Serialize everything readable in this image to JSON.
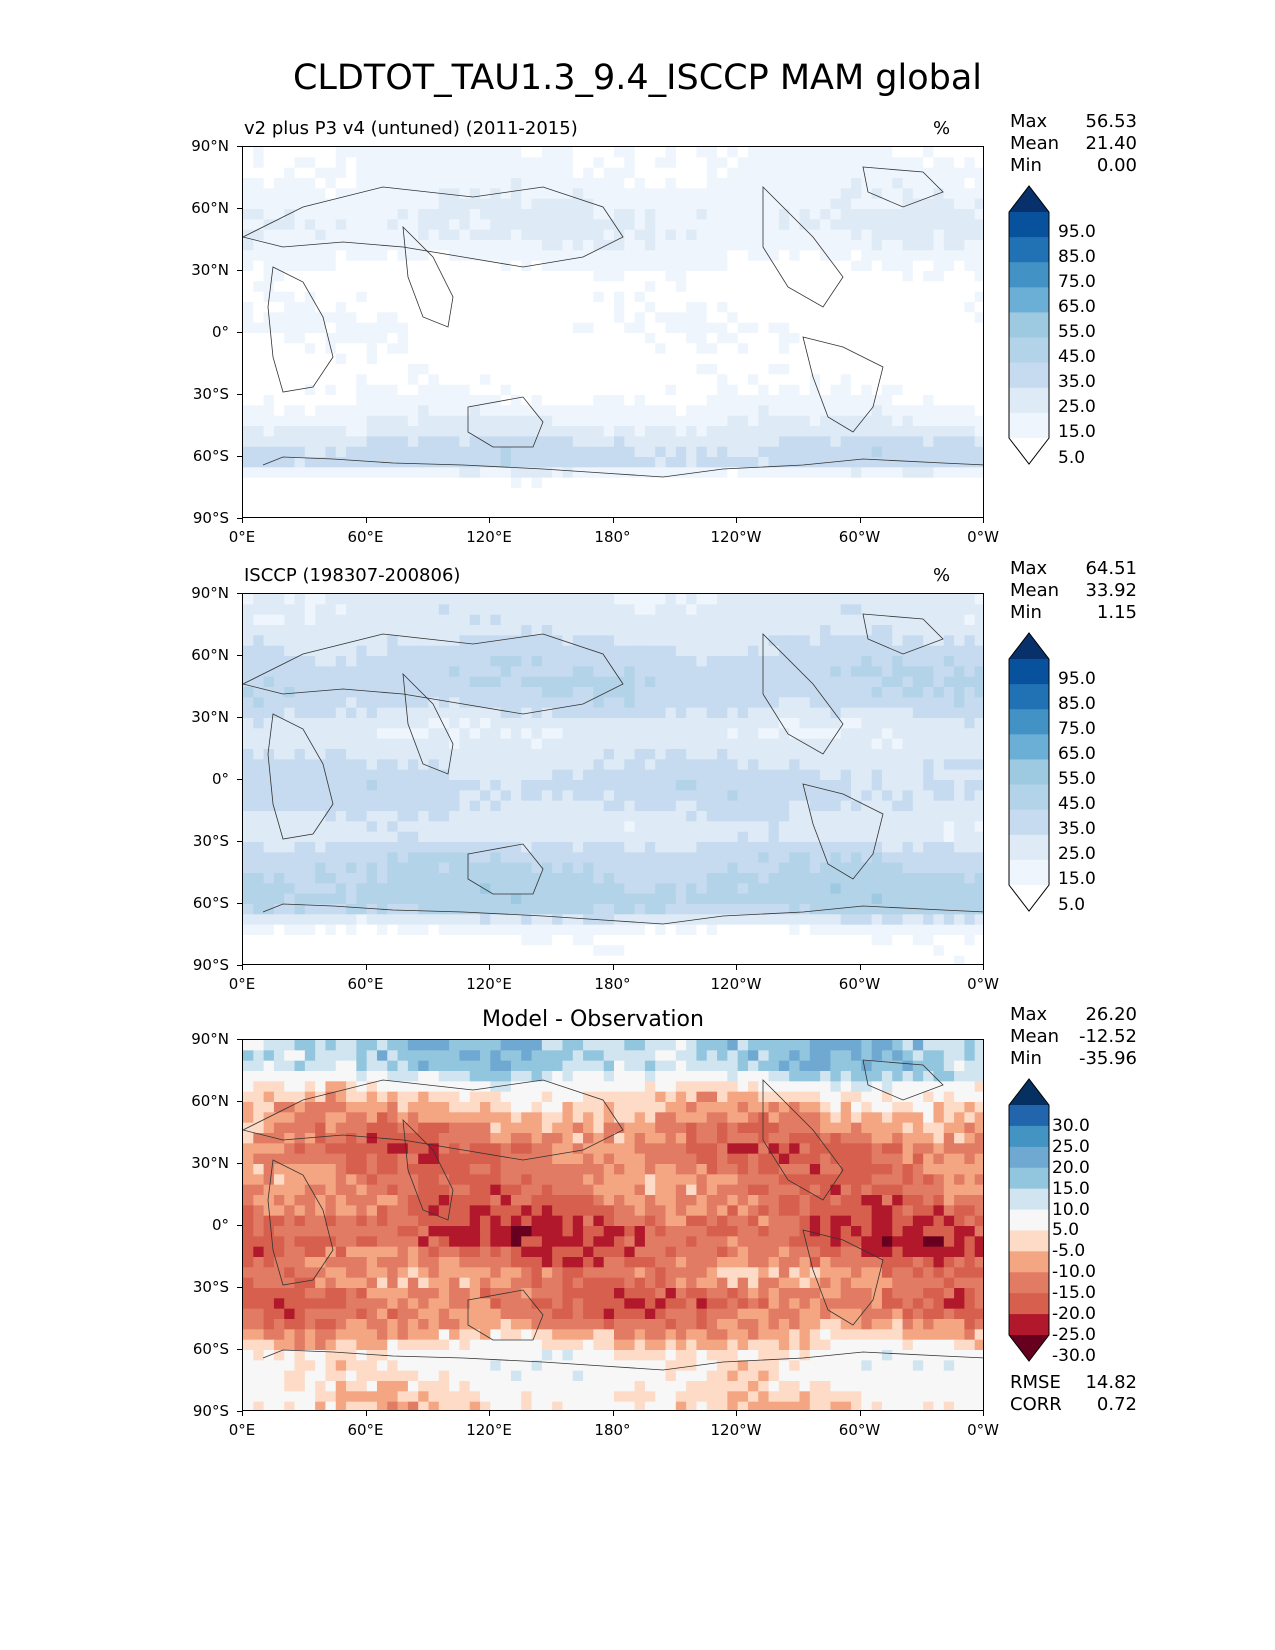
{
  "figure_title": "CLDTOT_TAU1.3_9.4_ISCCP MAM global",
  "chart_data": [
    {
      "type": "heatmap",
      "panel": "test",
      "title": "v2 plus P3 v4 (untuned) (2011-2015)",
      "units": "%",
      "xlabel": "",
      "ylabel": "",
      "x_ticks": [
        "0°E",
        "60°E",
        "120°E",
        "180°",
        "120°W",
        "60°W",
        "0°W"
      ],
      "y_ticks": [
        "90°N",
        "60°N",
        "30°N",
        "0°",
        "30°S",
        "60°S",
        "90°S"
      ],
      "xlim": [
        0,
        360
      ],
      "ylim": [
        -90,
        90
      ],
      "stats": {
        "max_label": "Max",
        "max": "56.53",
        "mean_label": "Mean",
        "mean": "21.40",
        "min_label": "Min",
        "min": "0.00"
      },
      "colorbar_levels": [
        "95.0",
        "85.0",
        "75.0",
        "65.0",
        "55.0",
        "45.0",
        "35.0",
        "25.0",
        "15.0",
        "5.0"
      ],
      "colorbar_colors": [
        "#08306b",
        "#08519c",
        "#2171b5",
        "#4292c6",
        "#6baed6",
        "#9ecae1",
        "#b3d3e8",
        "#c6dbef",
        "#deebf7",
        "#eef5fc",
        "#ffffff"
      ],
      "lat_profile": [
        [
          -90,
          1
        ],
        [
          -78,
          2
        ],
        [
          -70,
          12
        ],
        [
          -62,
          42
        ],
        [
          -55,
          38
        ],
        [
          -45,
          26
        ],
        [
          -35,
          18
        ],
        [
          -25,
          12
        ],
        [
          -15,
          10
        ],
        [
          -5,
          12
        ],
        [
          5,
          14
        ],
        [
          15,
          12
        ],
        [
          25,
          10
        ],
        [
          35,
          16
        ],
        [
          45,
          24
        ],
        [
          55,
          26
        ],
        [
          65,
          22
        ],
        [
          75,
          18
        ],
        [
          90,
          16
        ]
      ]
    },
    {
      "type": "heatmap",
      "panel": "reference",
      "title": "ISCCP (198307-200806)",
      "units": "%",
      "xlabel": "",
      "ylabel": "",
      "x_ticks": [
        "0°E",
        "60°E",
        "120°E",
        "180°",
        "120°W",
        "60°W",
        "0°W"
      ],
      "y_ticks": [
        "90°N",
        "60°N",
        "30°N",
        "0°",
        "30°S",
        "60°S",
        "90°S"
      ],
      "xlim": [
        0,
        360
      ],
      "ylim": [
        -90,
        90
      ],
      "stats": {
        "max_label": "Max",
        "max": "64.51",
        "mean_label": "Mean",
        "mean": "33.92",
        "min_label": "Min",
        "min": "1.15"
      },
      "colorbar_levels": [
        "95.0",
        "85.0",
        "75.0",
        "65.0",
        "55.0",
        "45.0",
        "35.0",
        "25.0",
        "15.0",
        "5.0"
      ],
      "colorbar_colors": [
        "#08306b",
        "#08519c",
        "#2171b5",
        "#4292c6",
        "#6baed6",
        "#9ecae1",
        "#b3d3e8",
        "#c6dbef",
        "#deebf7",
        "#eef5fc",
        "#ffffff"
      ],
      "lat_profile": [
        [
          -90,
          8
        ],
        [
          -78,
          10
        ],
        [
          -72,
          18
        ],
        [
          -62,
          48
        ],
        [
          -55,
          50
        ],
        [
          -45,
          46
        ],
        [
          -35,
          40
        ],
        [
          -25,
          28
        ],
        [
          -15,
          34
        ],
        [
          -5,
          40
        ],
        [
          5,
          36
        ],
        [
          15,
          30
        ],
        [
          25,
          26
        ],
        [
          35,
          38
        ],
        [
          45,
          44
        ],
        [
          55,
          42
        ],
        [
          65,
          36
        ],
        [
          75,
          30
        ],
        [
          90,
          28
        ]
      ]
    },
    {
      "type": "heatmap",
      "panel": "difference",
      "title": "Model - Observation",
      "units": "",
      "xlabel": "",
      "ylabel": "",
      "x_ticks": [
        "0°E",
        "60°E",
        "120°E",
        "180°",
        "120°W",
        "60°W",
        "0°W"
      ],
      "y_ticks": [
        "90°N",
        "60°N",
        "30°N",
        "0°",
        "30°S",
        "60°S",
        "90°S"
      ],
      "xlim": [
        0,
        360
      ],
      "ylim": [
        -90,
        90
      ],
      "stats": {
        "max_label": "Max",
        "max": "26.20",
        "mean_label": "Mean",
        "mean": "-12.52",
        "min_label": "Min",
        "min": "-35.96"
      },
      "metrics": {
        "rmse_label": "RMSE",
        "rmse": "14.82",
        "corr_label": "CORR",
        "corr": "0.72"
      },
      "colorbar_levels": [
        "30.0",
        "25.0",
        "20.0",
        "15.0",
        "10.0",
        "5.0",
        "-5.0",
        "-10.0",
        "-15.0",
        "-20.0",
        "-25.0",
        "-30.0"
      ],
      "colorbar_colors": [
        "#053061",
        "#2166ac",
        "#4393c3",
        "#6fa9d2",
        "#92c5de",
        "#d1e5f0",
        "#f7f7f7",
        "#fddbc7",
        "#f4a582",
        "#e17b63",
        "#d6604d",
        "#b2182b",
        "#67001f"
      ],
      "lat_profile": [
        [
          -90,
          -8
        ],
        [
          -80,
          -4
        ],
        [
          -72,
          -2
        ],
        [
          -62,
          -2
        ],
        [
          -55,
          -10
        ],
        [
          -45,
          -18
        ],
        [
          -35,
          -20
        ],
        [
          -25,
          -14
        ],
        [
          -15,
          -20
        ],
        [
          -5,
          -24
        ],
        [
          5,
          -20
        ],
        [
          15,
          -18
        ],
        [
          25,
          -16
        ],
        [
          35,
          -20
        ],
        [
          45,
          -16
        ],
        [
          55,
          -12
        ],
        [
          65,
          -6
        ],
        [
          75,
          10
        ],
        [
          90,
          12
        ]
      ]
    }
  ]
}
